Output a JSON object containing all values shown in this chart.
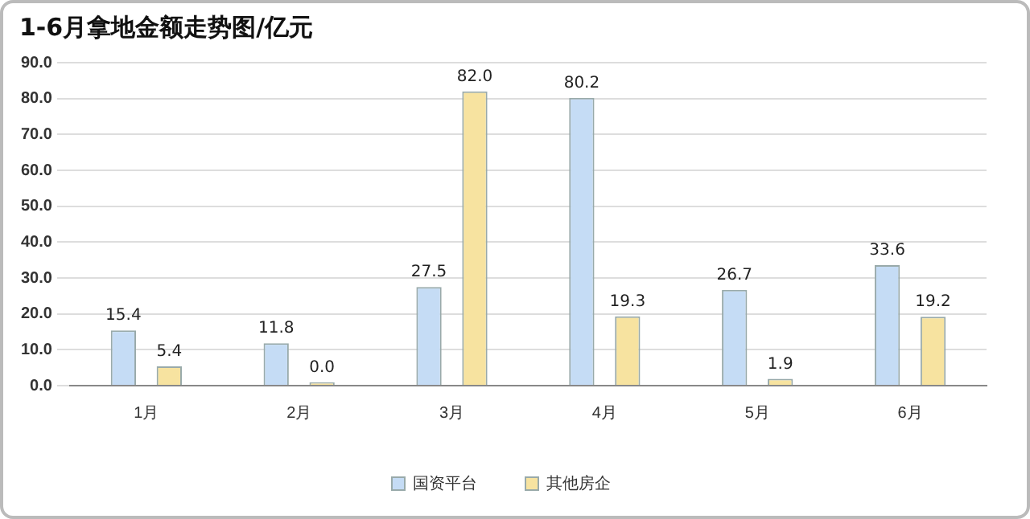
{
  "chart_data": {
    "type": "bar",
    "title": "1-6月拿地金额走势图/亿元",
    "categories": [
      "1月",
      "2月",
      "3月",
      "4月",
      "5月",
      "6月"
    ],
    "series": [
      {
        "name": "国资平台",
        "color": "#c5dcf5",
        "values": [
          15.4,
          11.8,
          27.5,
          80.2,
          26.7,
          33.6
        ],
        "value_labels": [
          "15.4",
          "11.8",
          "27.5",
          "80.2",
          "26.7",
          "33.6"
        ]
      },
      {
        "name": "其他房企",
        "color": "#f7e3a0",
        "values": [
          5.4,
          0.0,
          82.0,
          19.3,
          1.9,
          19.2
        ],
        "value_labels": [
          "5.4",
          "0.0",
          "82.0",
          "19.3",
          "1.9",
          "19.2"
        ]
      }
    ],
    "ylim": [
      0,
      90
    ],
    "yticks": [
      {
        "value": 0,
        "label": "0.0"
      },
      {
        "value": 10,
        "label": "10.0"
      },
      {
        "value": 20,
        "label": "20.0"
      },
      {
        "value": 30,
        "label": "30.0"
      },
      {
        "value": 40,
        "label": "40.0"
      },
      {
        "value": 50,
        "label": "50.0"
      },
      {
        "value": 60,
        "label": "60.0"
      },
      {
        "value": 70,
        "label": "70.0"
      },
      {
        "value": 80,
        "label": "80.0"
      },
      {
        "value": 90,
        "label": "90.0"
      }
    ],
    "grid": "y",
    "legend": "bottom"
  }
}
